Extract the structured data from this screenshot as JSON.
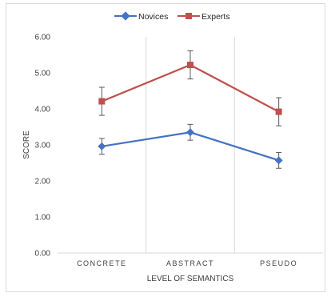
{
  "chart_data": {
    "type": "line",
    "categories": [
      "CONCRETE",
      "ABSTRACT",
      "PSEUDO"
    ],
    "series": [
      {
        "name": "Novices",
        "color": "#4472c4",
        "marker": "diamond",
        "values": [
          2.96,
          3.35,
          2.57
        ],
        "error": [
          0.22,
          0.22,
          0.22
        ]
      },
      {
        "name": "Experts",
        "color": "#c0504d",
        "marker": "square",
        "values": [
          4.21,
          5.22,
          3.92
        ],
        "error": [
          0.39,
          0.39,
          0.39
        ]
      }
    ],
    "xlabel": "LEVEL OF SEMANTICS",
    "ylabel": "SCORE",
    "ylim": [
      0,
      6
    ],
    "yticks": [
      "0.00",
      "1.00",
      "2.00",
      "3.00",
      "4.00",
      "5.00",
      "6.00"
    ],
    "legend_position": "top",
    "grid": "vertical category separators"
  }
}
